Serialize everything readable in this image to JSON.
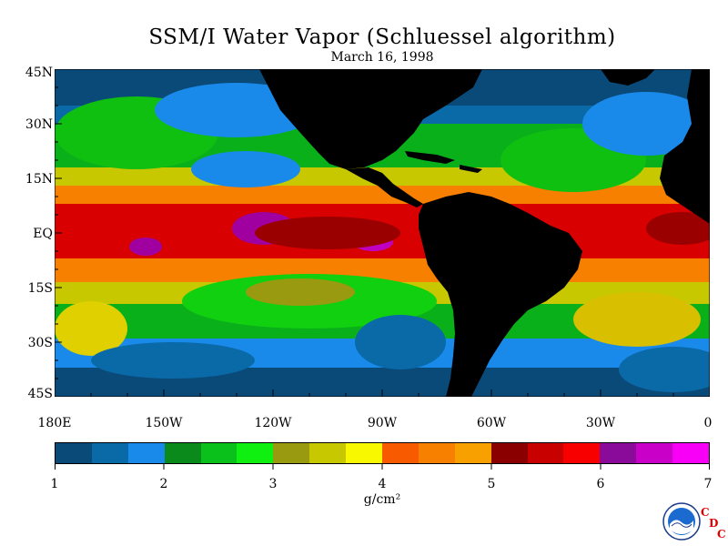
{
  "title": "SSM/I Water Vapor (Schluessel algorithm)",
  "date": "March 16, 1998",
  "latitude_labels": [
    "45N",
    "30N",
    "15N",
    "EQ",
    "15S",
    "30S",
    "45S"
  ],
  "longitude_labels": [
    "180E",
    "150W",
    "120W",
    "90W",
    "60W",
    "30W",
    "0"
  ],
  "colorbar": {
    "min": 1,
    "max": 7,
    "labels": [
      "1",
      "2",
      "3",
      "4",
      "5",
      "6",
      "7"
    ],
    "colors": [
      "#0a4a78",
      "#0a6aa8",
      "#1a8aea",
      "#0a8a1a",
      "#0ac01a",
      "#10f010",
      "#9a9a10",
      "#c8c800",
      "#f8f800",
      "#f85a00",
      "#f88000",
      "#f8a000",
      "#8a0000",
      "#c80000",
      "#f80000",
      "#8a0a9a",
      "#c800c8",
      "#f800f8"
    ]
  },
  "units": "g/cm²",
  "logo": {
    "agency": "NOAA",
    "letters": [
      "C",
      "D",
      "C"
    ],
    "letter_color": "#e00000"
  },
  "colors": {
    "land": "#000000",
    "ocean_dry": "#0a4a78",
    "ocean_moist": "#d80000"
  }
}
